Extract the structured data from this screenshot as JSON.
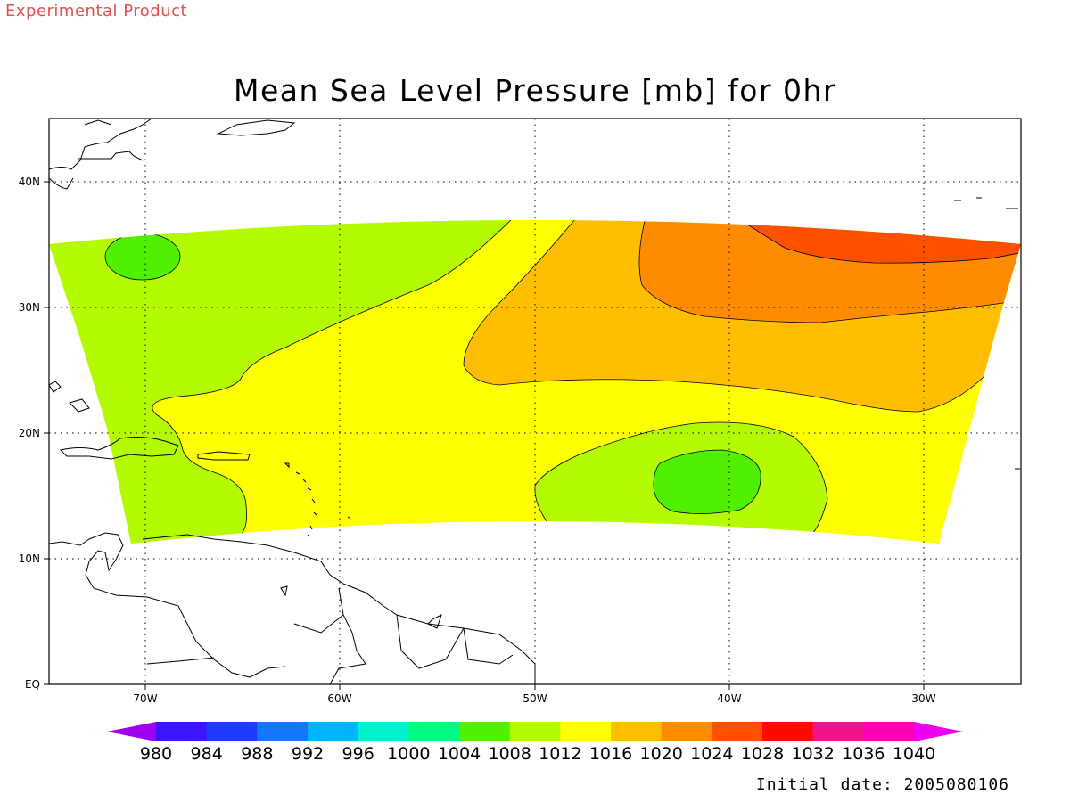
{
  "header": {
    "experimental_label": "Experimental Product",
    "title": "Mean Sea Level Pressure [mb] for 0hr"
  },
  "footer": {
    "initial_date": "Initial date: 2005080106"
  },
  "map": {
    "lon_ticks": [
      "70W",
      "60W",
      "50W",
      "40W",
      "30W"
    ],
    "lat_ticks": [
      "40N",
      "30N",
      "20N",
      "10N",
      "EQ"
    ],
    "lon_range": [
      -75,
      -25
    ],
    "lat_range": [
      0,
      45
    ],
    "contour_interval_mb": 4
  },
  "colorbar": {
    "levels": [
      "980",
      "984",
      "988",
      "992",
      "996",
      "1000",
      "1004",
      "1008",
      "1012",
      "1016",
      "1020",
      "1024",
      "1028",
      "1032",
      "1036",
      "1040"
    ],
    "colors": [
      "#a000f0",
      "#3c14ff",
      "#1e3cff",
      "#1478ff",
      "#00b4ff",
      "#00f0d2",
      "#00fa82",
      "#50f000",
      "#b4fa00",
      "#ffff00",
      "#ffbe00",
      "#ff8c00",
      "#ff5000",
      "#ff0a00",
      "#f0148c",
      "#ff00b4",
      "#f000f0"
    ]
  },
  "pressure_regions": [
    {
      "name": "High 1024-1028",
      "color": "#ff5000"
    },
    {
      "name": "1020-1024",
      "color": "#ff8c00"
    },
    {
      "name": "1016-1020",
      "color": "#ffbe00"
    },
    {
      "name": "1012-1016",
      "color": "#ffff00"
    },
    {
      "name": "1008-1012",
      "color": "#b4fa00"
    },
    {
      "name": "1004-1008",
      "color": "#50f000"
    }
  ]
}
